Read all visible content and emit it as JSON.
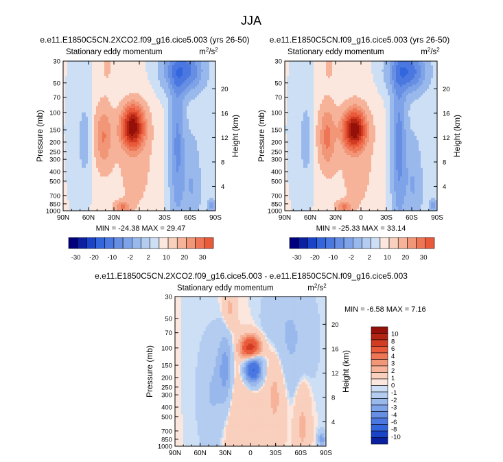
{
  "figure": {
    "title": "JJA"
  },
  "colors": {
    "neg": [
      "#ccdff5",
      "#b3ccf0",
      "#99b8ec",
      "#7fa3e8",
      "#668ee3",
      "#4a78e0",
      "#3366dd",
      "#1a44c8",
      "#0a20a0",
      "#00007e"
    ],
    "pos": [
      "#fbe7dd",
      "#f9cfbd",
      "#f6b39a",
      "#f29678",
      "#ee7656",
      "#e85a3a",
      "#d23c22",
      "#b42413",
      "#941008",
      "#6a0000"
    ],
    "frame": "#000000",
    "text": "#000000"
  },
  "chart_data": [
    {
      "id": "top-left",
      "type": "contour",
      "title": "e.e11.E1850C5CN.2XCO2.f09_g16.cice5.003 (yrs 26-50)",
      "subtitle_left": "Stationary eddy momentum",
      "units": "m2/s2",
      "units_display": {
        "base": "m",
        "sup1": "2",
        "mid": "/s",
        "sup2": "2"
      },
      "ylabel": "Pressure (mb)",
      "ylabel_right": "Height (km)",
      "xticks": [
        "90N",
        "60N",
        "30N",
        "0",
        "30S",
        "60S",
        "90S"
      ],
      "xtick_values": [
        90,
        60,
        30,
        0,
        -30,
        -60,
        -90
      ],
      "xlim": [
        90,
        -90
      ],
      "yticks": [
        "30",
        "50",
        "70",
        "100",
        "150",
        "200",
        "250",
        "300",
        "400",
        "500",
        "700",
        "850",
        "1000"
      ],
      "ytick_values": [
        30,
        50,
        70,
        100,
        150,
        200,
        250,
        300,
        400,
        500,
        700,
        850,
        1000
      ],
      "ylim": [
        30,
        1000
      ],
      "yscale": "log",
      "height_ticks": [
        "20",
        "16",
        "12",
        "8",
        "4"
      ],
      "height_values": [
        20,
        16,
        12,
        8,
        4
      ],
      "stats": "MIN = -24.38   MAX = 29.47",
      "min": -24.38,
      "max": 29.47,
      "levels": [
        -30,
        -25,
        -20,
        -15,
        -10,
        -6,
        -2,
        2,
        6,
        10,
        15,
        20,
        25,
        30
      ],
      "features": [
        {
          "lat": 8,
          "p": 150,
          "value": 29.47,
          "lat_width": 9,
          "logp_width": 0.13
        },
        {
          "lat": 7,
          "p": 105,
          "value": 8,
          "lat_width": 8,
          "logp_width": 0.1
        },
        {
          "lat": 42,
          "p": 175,
          "value": 10,
          "lat_width": 7,
          "logp_width": 0.22
        },
        {
          "lat": 20,
          "p": 920,
          "value": 10,
          "lat_width": 6,
          "logp_width": 0.04
        },
        {
          "lat": 5,
          "p": 330,
          "value": 3,
          "lat_width": 18,
          "logp_width": 0.45
        },
        {
          "lat": -45,
          "p": 220,
          "value": -11,
          "lat_width": 6,
          "logp_width": 0.55
        },
        {
          "lat": -52,
          "p": 38,
          "value": -18,
          "lat_width": 15,
          "logp_width": 0.14
        },
        {
          "lat": -62,
          "p": 560,
          "value": -6,
          "lat_width": 7,
          "logp_width": 0.35
        },
        {
          "lat": 65,
          "p": 190,
          "value": -4,
          "lat_width": 5,
          "logp_width": 0.25
        },
        {
          "lat": 38,
          "p": 35,
          "value": 2.5,
          "lat_width": 5,
          "logp_width": 0.12
        },
        {
          "lat": -85,
          "p": 880,
          "value": -10,
          "lat_width": 3,
          "logp_width": 0.04
        }
      ]
    },
    {
      "id": "top-right",
      "type": "contour",
      "title": "e.e11.E1850C5CN.f09_g16.cice5.003 (yrs 26-50)",
      "subtitle_left": "Stationary eddy momentum",
      "units": "m2/s2",
      "units_display": {
        "base": "m",
        "sup1": "2",
        "mid": "/s",
        "sup2": "2"
      },
      "ylabel": "Pressure (mb)",
      "ylabel_right": "Height (km)",
      "xticks": [
        "90N",
        "60N",
        "30N",
        "0",
        "30S",
        "60S",
        "90S"
      ],
      "xtick_values": [
        90,
        60,
        30,
        0,
        -30,
        -60,
        -90
      ],
      "xlim": [
        90,
        -90
      ],
      "yticks": [
        "30",
        "50",
        "70",
        "100",
        "150",
        "200",
        "250",
        "300",
        "400",
        "500",
        "700",
        "850",
        "1000"
      ],
      "ytick_values": [
        30,
        50,
        70,
        100,
        150,
        200,
        250,
        300,
        400,
        500,
        700,
        850,
        1000
      ],
      "ylim": [
        30,
        1000
      ],
      "yscale": "log",
      "height_ticks": [
        "20",
        "16",
        "12",
        "8",
        "4"
      ],
      "height_values": [
        20,
        16,
        12,
        8,
        4
      ],
      "stats": "MIN = -25.33   MAX = 33.14",
      "min": -25.33,
      "max": 33.14,
      "levels": [
        -30,
        -25,
        -20,
        -15,
        -10,
        -6,
        -2,
        2,
        6,
        10,
        15,
        20,
        25,
        30
      ],
      "features": [
        {
          "lat": 8,
          "p": 150,
          "value": 33.14,
          "lat_width": 9,
          "logp_width": 0.13
        },
        {
          "lat": 40,
          "p": 175,
          "value": 11,
          "lat_width": 7,
          "logp_width": 0.22
        },
        {
          "lat": 20,
          "p": 920,
          "value": 10,
          "lat_width": 6,
          "logp_width": 0.04
        },
        {
          "lat": 5,
          "p": 330,
          "value": 3,
          "lat_width": 18,
          "logp_width": 0.45
        },
        {
          "lat": -45,
          "p": 220,
          "value": -12,
          "lat_width": 6,
          "logp_width": 0.55
        },
        {
          "lat": -55,
          "p": 38,
          "value": -19,
          "lat_width": 14,
          "logp_width": 0.14
        },
        {
          "lat": -62,
          "p": 560,
          "value": -6,
          "lat_width": 7,
          "logp_width": 0.35
        },
        {
          "lat": 65,
          "p": 190,
          "value": -4,
          "lat_width": 5,
          "logp_width": 0.25
        },
        {
          "lat": 38,
          "p": 35,
          "value": 2.5,
          "lat_width": 5,
          "logp_width": 0.12
        },
        {
          "lat": -85,
          "p": 880,
          "value": -10,
          "lat_width": 3,
          "logp_width": 0.04
        }
      ]
    },
    {
      "id": "bottom-diff",
      "type": "contour",
      "title": "e.e11.E1850C5CN.2XCO2.f09_g16.cice5.003 - e.e11.E1850C5CN.f09_g16.cice5.003",
      "subtitle_left": "Stationary eddy momentum",
      "units": "m2/s2",
      "units_display": {
        "base": "m",
        "sup1": "2",
        "mid": "/s",
        "sup2": "2"
      },
      "ylabel": "Pressure (mb)",
      "ylabel_right": "Height (km)",
      "xticks": [
        "90N",
        "60N",
        "30N",
        "0",
        "30S",
        "60S",
        "90S"
      ],
      "xtick_values": [
        90,
        60,
        30,
        0,
        -30,
        -60,
        -90
      ],
      "xlim": [
        90,
        -90
      ],
      "yticks": [
        "30",
        "50",
        "70",
        "100",
        "150",
        "200",
        "250",
        "300",
        "400",
        "500",
        "700",
        "850",
        "1000"
      ],
      "ytick_values": [
        30,
        50,
        70,
        100,
        150,
        200,
        250,
        300,
        400,
        500,
        700,
        850,
        1000
      ],
      "ylim": [
        30,
        1000
      ],
      "yscale": "log",
      "height_ticks": [
        "20",
        "16",
        "12",
        "8",
        "4"
      ],
      "height_values": [
        20,
        16,
        12,
        8,
        4
      ],
      "stats": "MIN =  -6.58   MAX =   7.16",
      "min": -6.58,
      "max": 7.16,
      "levels": [
        -10,
        -8,
        -6,
        -4,
        -3,
        -2,
        -1,
        0,
        1,
        2,
        3,
        4,
        6,
        8,
        10
      ],
      "features": [
        {
          "lat": 0,
          "p": 100,
          "value": 7.16,
          "lat_width": 8,
          "logp_width": 0.08
        },
        {
          "lat": -3,
          "p": 165,
          "value": -6.58,
          "lat_width": 7,
          "logp_width": 0.1
        },
        {
          "lat": 30,
          "p": 165,
          "value": -2.5,
          "lat_width": 6,
          "logp_width": 0.25
        },
        {
          "lat": 10,
          "p": 400,
          "value": 0.8,
          "lat_width": 20,
          "logp_width": 0.4
        },
        {
          "lat": -30,
          "p": 250,
          "value": 1.3,
          "lat_width": 8,
          "logp_width": 0.35
        },
        {
          "lat": -45,
          "p": 80,
          "value": -1.2,
          "lat_width": 18,
          "logp_width": 0.35
        },
        {
          "lat": 45,
          "p": 300,
          "value": -1.2,
          "lat_width": 10,
          "logp_width": 0.35
        },
        {
          "lat": -62,
          "p": 600,
          "value": 1.2,
          "lat_width": 6,
          "logp_width": 0.3
        },
        {
          "lat": 25,
          "p": 40,
          "value": 1.2,
          "lat_width": 5,
          "logp_width": 0.15
        },
        {
          "lat": -85,
          "p": 850,
          "value": -2.5,
          "lat_width": 3,
          "logp_width": 0.05
        }
      ]
    }
  ],
  "colorbars": {
    "shared_labels": [
      "-30",
      "-20",
      "-10",
      "-2",
      "2",
      "10",
      "20",
      "30"
    ],
    "shared_label_indices": [
      1,
      3,
      5,
      7,
      9,
      11,
      13,
      15
    ],
    "diff_labels": [
      "10",
      "8",
      "6",
      "4",
      "3",
      "2",
      "1",
      "0",
      "-1",
      "-2",
      "-3",
      "-4",
      "-6",
      "-8",
      "-10"
    ]
  }
}
